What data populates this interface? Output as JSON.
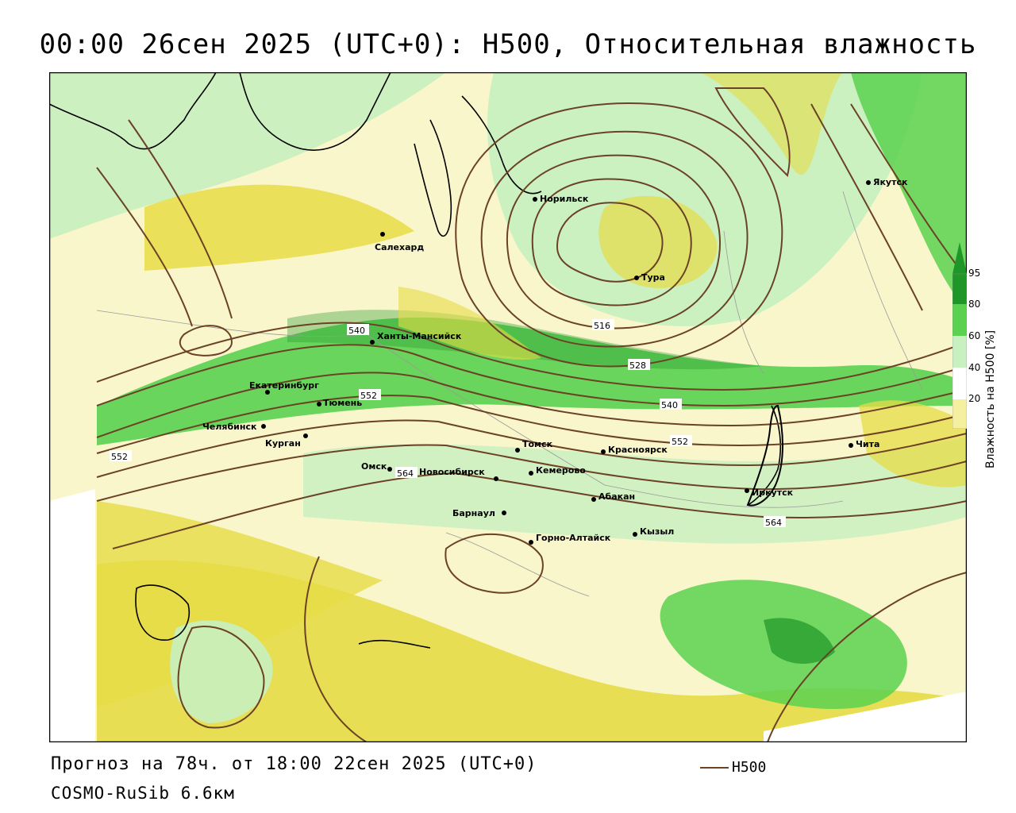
{
  "title": "00:00 26сен 2025 (UTC+0): Н500, Относительная влажность",
  "footer": {
    "forecast": "Прогноз на 78ч. от 18:00 22сен 2025 (UTC+0)",
    "model": "COSMO-RuSib 6.6км"
  },
  "legend": {
    "contour_label": "H500",
    "contour_color": "#6b4226"
  },
  "colorbar": {
    "title": "Влажность на H500 [%]",
    "ticks": [
      "95",
      "80",
      "60",
      "40",
      "20"
    ],
    "colors": {
      "dry_yellow": "#e6dc46",
      "light_yellow": "#f5efa0",
      "white": "#ffffff",
      "light_green": "#c8f0c0",
      "green": "#5ad250",
      "dark_green": "#1e9628"
    }
  },
  "cities": [
    {
      "name": "Норильск"
    },
    {
      "name": "Салехард"
    },
    {
      "name": "Тура"
    },
    {
      "name": "Якутск"
    },
    {
      "name": "Ханты-Мансийск"
    },
    {
      "name": "Екатеринбург"
    },
    {
      "name": "Тюмень"
    },
    {
      "name": "Челябинск"
    },
    {
      "name": "Курган"
    },
    {
      "name": "Омск"
    },
    {
      "name": "Новосибирск"
    },
    {
      "name": "Томск"
    },
    {
      "name": "Кемерово"
    },
    {
      "name": "Красноярск"
    },
    {
      "name": "Барнаул"
    },
    {
      "name": "Абакан"
    },
    {
      "name": "Горно-Алтайск"
    },
    {
      "name": "Кызыл"
    },
    {
      "name": "Иркутск"
    },
    {
      "name": "Чита"
    }
  ],
  "contour_labels": [
    "516",
    "528",
    "540",
    "552",
    "564"
  ]
}
